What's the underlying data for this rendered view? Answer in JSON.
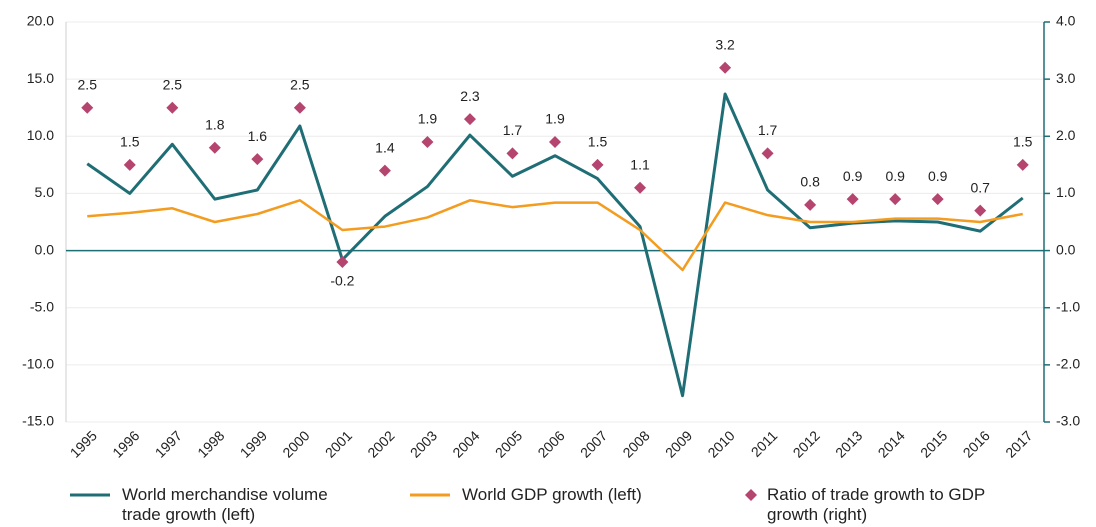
{
  "chart_data": {
    "type": "line",
    "categories": [
      "1995",
      "1996",
      "1997",
      "1998",
      "1999",
      "2000",
      "2001",
      "2002",
      "2003",
      "2004",
      "2005",
      "2006",
      "2007",
      "2008",
      "2009",
      "2010",
      "2011",
      "2012",
      "2013",
      "2014",
      "2015",
      "2016",
      "2017"
    ],
    "series": [
      {
        "name": "World merchandise volume trade growth (left)",
        "color": "#1f6e75",
        "values": [
          7.6,
          5.0,
          9.3,
          4.5,
          5.3,
          10.9,
          -0.8,
          3.0,
          5.6,
          10.1,
          6.5,
          8.3,
          6.3,
          2.1,
          -12.7,
          13.7,
          5.3,
          2.0,
          2.4,
          2.6,
          2.5,
          1.7,
          4.6
        ]
      },
      {
        "name": "World GDP growth (left)",
        "color": "#f39c1f",
        "values": [
          3.0,
          3.3,
          3.7,
          2.5,
          3.2,
          4.4,
          1.8,
          2.1,
          2.9,
          4.4,
          3.8,
          4.2,
          4.2,
          1.8,
          -1.7,
          4.2,
          3.1,
          2.5,
          2.5,
          2.8,
          2.8,
          2.5,
          3.2
        ]
      },
      {
        "name": "Ratio of trade growth to GDP growth (right)",
        "color": "#b5446e",
        "type": "scatter",
        "axis": "y2",
        "values": [
          2.5,
          1.5,
          2.5,
          1.8,
          1.6,
          2.5,
          -0.2,
          1.4,
          1.9,
          2.3,
          1.7,
          1.9,
          1.5,
          1.1,
          null,
          3.2,
          1.7,
          0.8,
          0.9,
          0.9,
          0.9,
          0.7,
          1.5
        ]
      }
    ],
    "ylim": [
      -15,
      20
    ],
    "yticks": [
      {
        "value": 20,
        "label": "20.0"
      },
      {
        "value": 15,
        "label": "15.0"
      },
      {
        "value": 10,
        "label": "10.0"
      },
      {
        "value": 5,
        "label": "5.0"
      },
      {
        "value": 0,
        "label": "0.0"
      },
      {
        "value": -5,
        "label": "-5.0"
      },
      {
        "value": -10,
        "label": "-10.0"
      },
      {
        "value": -15,
        "label": "-15.0"
      }
    ],
    "y2lim": [
      -3,
      4
    ],
    "y2ticks": [
      {
        "value": 4,
        "label": "4.0"
      },
      {
        "value": 3,
        "label": "3.0"
      },
      {
        "value": 2,
        "label": "2.0"
      },
      {
        "value": 1,
        "label": "1.0"
      },
      {
        "value": 0,
        "label": "0.0"
      },
      {
        "value": -1,
        "label": "-1.0"
      },
      {
        "value": -2,
        "label": "-2.0"
      },
      {
        "value": -3,
        "label": "-3.0"
      }
    ],
    "grid": true
  }
}
